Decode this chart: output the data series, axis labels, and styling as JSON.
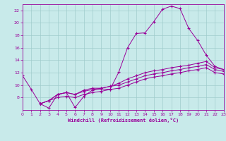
{
  "xlabel": "Windchill (Refroidissement éolien,°C)",
  "bg_color": "#c8eaea",
  "grid_color": "#a0cccc",
  "line_color": "#990099",
  "xlim": [
    0,
    23
  ],
  "ylim": [
    6,
    23
  ],
  "x_ticks": [
    0,
    1,
    2,
    3,
    4,
    5,
    6,
    7,
    8,
    9,
    10,
    11,
    12,
    13,
    14,
    15,
    16,
    17,
    18,
    19,
    20,
    21,
    22,
    23
  ],
  "y_ticks": [
    8,
    10,
    12,
    14,
    16,
    18,
    20,
    22
  ],
  "line1_x": [
    0,
    1,
    2,
    3,
    4,
    5,
    6,
    7,
    8,
    9,
    10,
    11,
    12,
    13,
    14,
    15,
    16,
    17,
    18,
    19,
    20,
    21,
    22,
    23
  ],
  "line1_y": [
    11.5,
    9.3,
    7.0,
    6.3,
    8.5,
    8.8,
    6.4,
    8.2,
    9.2,
    9.4,
    9.3,
    12.1,
    16.0,
    18.3,
    18.4,
    20.2,
    22.2,
    22.7,
    22.3,
    19.1,
    17.2,
    14.8,
    13.0,
    12.5
  ],
  "line2_x": [
    2,
    3,
    4,
    5,
    6,
    7,
    8,
    9,
    10,
    11,
    12,
    13,
    14,
    15,
    16,
    17,
    18,
    19,
    20,
    21,
    22,
    23
  ],
  "line2_y": [
    7.0,
    7.5,
    8.5,
    8.8,
    8.5,
    9.2,
    9.5,
    9.5,
    9.8,
    10.3,
    11.0,
    11.5,
    12.0,
    12.3,
    12.5,
    12.8,
    13.0,
    13.2,
    13.5,
    13.8,
    12.8,
    12.5
  ],
  "line3_x": [
    2,
    3,
    4,
    5,
    6,
    7,
    8,
    9,
    10,
    11,
    12,
    13,
    14,
    15,
    16,
    17,
    18,
    19,
    20,
    21,
    22,
    23
  ],
  "line3_y": [
    7.0,
    7.5,
    8.5,
    8.8,
    8.5,
    9.0,
    9.3,
    9.5,
    9.8,
    10.0,
    10.5,
    11.0,
    11.5,
    11.8,
    12.0,
    12.3,
    12.5,
    12.8,
    13.0,
    13.3,
    12.5,
    12.2
  ],
  "line4_x": [
    2,
    3,
    4,
    5,
    6,
    7,
    8,
    9,
    10,
    11,
    12,
    13,
    14,
    15,
    16,
    17,
    18,
    19,
    20,
    21,
    22,
    23
  ],
  "line4_y": [
    7.0,
    7.5,
    8.0,
    8.2,
    8.0,
    8.5,
    8.8,
    9.0,
    9.3,
    9.5,
    10.0,
    10.5,
    11.0,
    11.3,
    11.5,
    11.8,
    12.0,
    12.3,
    12.5,
    12.8,
    12.0,
    11.8
  ]
}
